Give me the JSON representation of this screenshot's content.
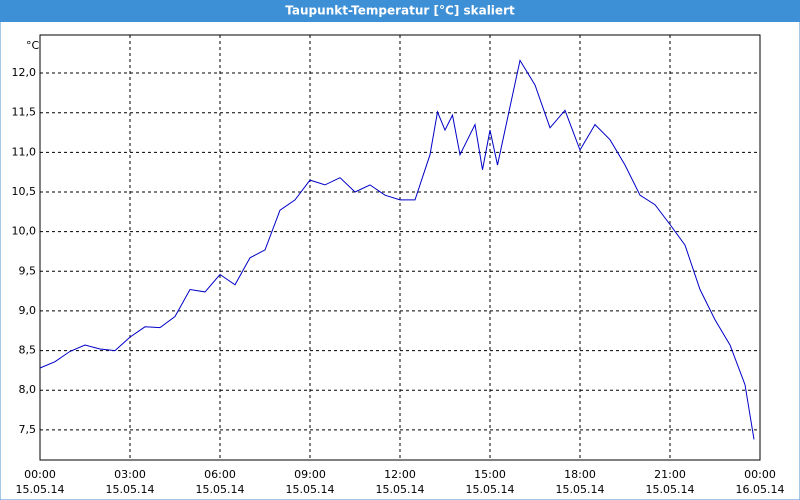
{
  "chart_data": {
    "type": "line",
    "title": "Taupunkt-Temperatur [°C] skaliert",
    "y_label": "°C",
    "x": [
      0,
      0.5,
      1,
      1.5,
      2,
      2.5,
      3,
      3.5,
      4,
      4.5,
      5,
      5.5,
      6,
      6.5,
      7,
      7.5,
      8,
      8.5,
      9,
      9.5,
      10,
      10.5,
      11,
      11.5,
      12,
      12.5,
      13,
      13.25,
      13.5,
      13.75,
      14,
      14.5,
      14.75,
      15,
      15.25,
      15.5,
      16,
      16.5,
      17,
      17.5,
      18,
      18.5,
      19,
      19.5,
      20,
      20.5,
      21,
      21.5,
      22,
      22.5,
      23,
      23.5,
      23.8
    ],
    "series": [
      {
        "name": "Taupunkt",
        "color": "#0000c8",
        "values": [
          8.28,
          8.36,
          8.49,
          8.57,
          8.52,
          8.5,
          8.67,
          8.8,
          8.79,
          8.93,
          9.27,
          9.24,
          9.46,
          9.33,
          9.67,
          9.77,
          10.27,
          10.4,
          10.65,
          10.59,
          10.68,
          10.5,
          10.59,
          10.46,
          10.4,
          10.4,
          10.97,
          11.51,
          11.28,
          11.47,
          10.97,
          11.35,
          10.78,
          11.28,
          10.84,
          11.28,
          12.16,
          11.85,
          11.31,
          11.53,
          11.03,
          11.35,
          11.16,
          10.84,
          10.46,
          10.34,
          10.09,
          9.83,
          9.27,
          8.89,
          8.57,
          8.07,
          7.38
        ]
      }
    ],
    "xlim": [
      0,
      24
    ],
    "xticks": [
      {
        "value": 0,
        "label": "00:00",
        "date": "15.05.14"
      },
      {
        "value": 3,
        "label": "03:00",
        "date": "15.05.14"
      },
      {
        "value": 6,
        "label": "06:00",
        "date": "15.05.14"
      },
      {
        "value": 9,
        "label": "09:00",
        "date": "15.05.14"
      },
      {
        "value": 12,
        "label": "12:00",
        "date": "15.05.14"
      },
      {
        "value": 15,
        "label": "15:00",
        "date": "15.05.14"
      },
      {
        "value": 18,
        "label": "18:00",
        "date": "15.05.14"
      },
      {
        "value": 21,
        "label": "21:00",
        "date": "15.05.14"
      },
      {
        "value": 24,
        "label": "00:00",
        "date": "16.05.14"
      }
    ],
    "ylim": [
      7.12,
      12.48
    ],
    "yticks": [
      {
        "value": 7.5,
        "label": "7,5"
      },
      {
        "value": 8,
        "label": "8,0"
      },
      {
        "value": 8.5,
        "label": "8,5"
      },
      {
        "value": 9,
        "label": "9,0"
      },
      {
        "value": 9.5,
        "label": "9,5"
      },
      {
        "value": 10,
        "label": "10,0"
      },
      {
        "value": 10.5,
        "label": "10,5"
      },
      {
        "value": 11,
        "label": "11,0"
      },
      {
        "value": 11.5,
        "label": "11,5"
      },
      {
        "value": 12,
        "label": "12,0"
      }
    ],
    "grid": true
  }
}
